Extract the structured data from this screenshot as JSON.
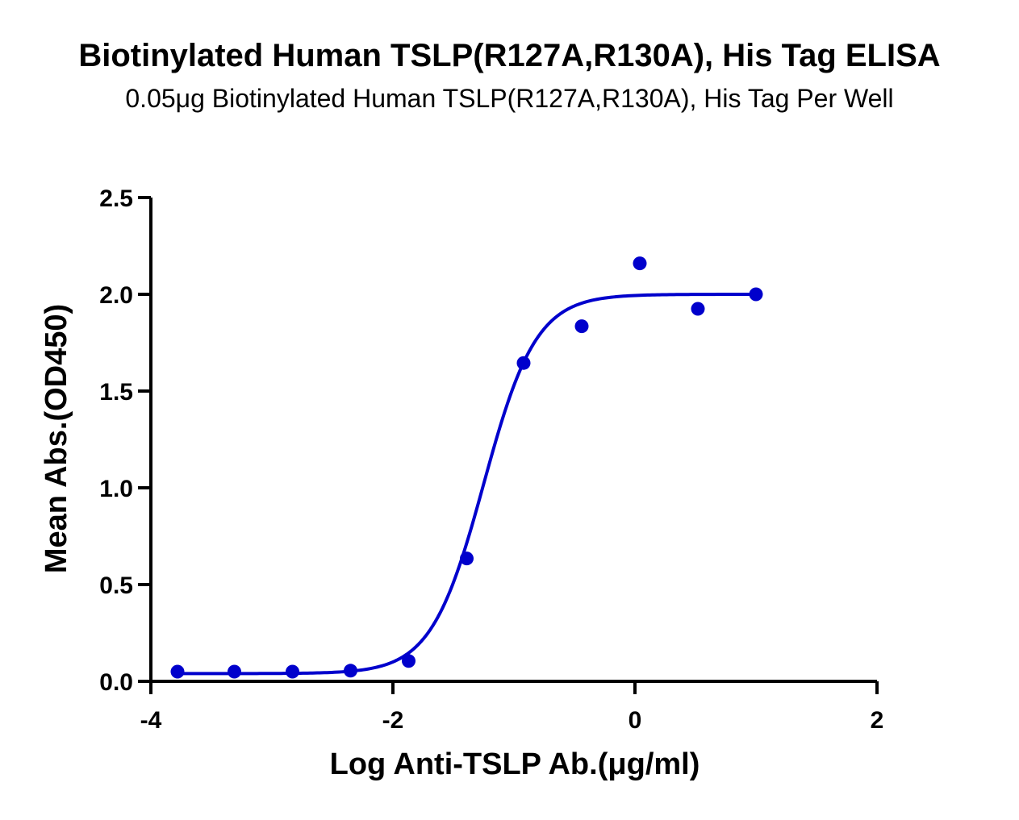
{
  "chart_data": {
    "type": "scatter",
    "title": "Biotinylated Human TSLP(R127A,R130A), His Tag ELISA",
    "subtitle": "0.05μg Biotinylated Human TSLP(R127A,R130A), His Tag Per Well",
    "xlabel": "Log Anti-TSLP Ab.(μg/ml)",
    "ylabel": "Mean Abs.(OD450)",
    "xlim": [
      -4,
      2
    ],
    "ylim": [
      0,
      2.5
    ],
    "x_ticks": [
      -4,
      -2,
      0,
      2
    ],
    "x_tick_labels": [
      "-4",
      "-2",
      "0",
      "2"
    ],
    "y_ticks": [
      0,
      0.5,
      1.0,
      1.5,
      2.0,
      2.5
    ],
    "y_tick_labels": [
      "0.0",
      "0.5",
      "1.0",
      "1.5",
      "2.0",
      "2.5"
    ],
    "grid": false,
    "legend": "none",
    "colors": {
      "series": "#0000CC",
      "axis": "#000000"
    },
    "series": [
      {
        "x": [
          -3.78,
          -3.31,
          -2.83,
          -2.35,
          -1.87,
          -1.39,
          -0.92,
          -0.44,
          0.04,
          0.52,
          1.0
        ],
        "y": [
          0.05,
          0.05,
          0.05,
          0.055,
          0.105,
          0.635,
          1.645,
          1.835,
          2.16,
          1.925,
          2.0
        ],
        "fit": {
          "model": "4PL",
          "bottom": 0.04,
          "top": 2.0,
          "logEC50": -1.25,
          "hill": 2.0
        }
      }
    ]
  }
}
